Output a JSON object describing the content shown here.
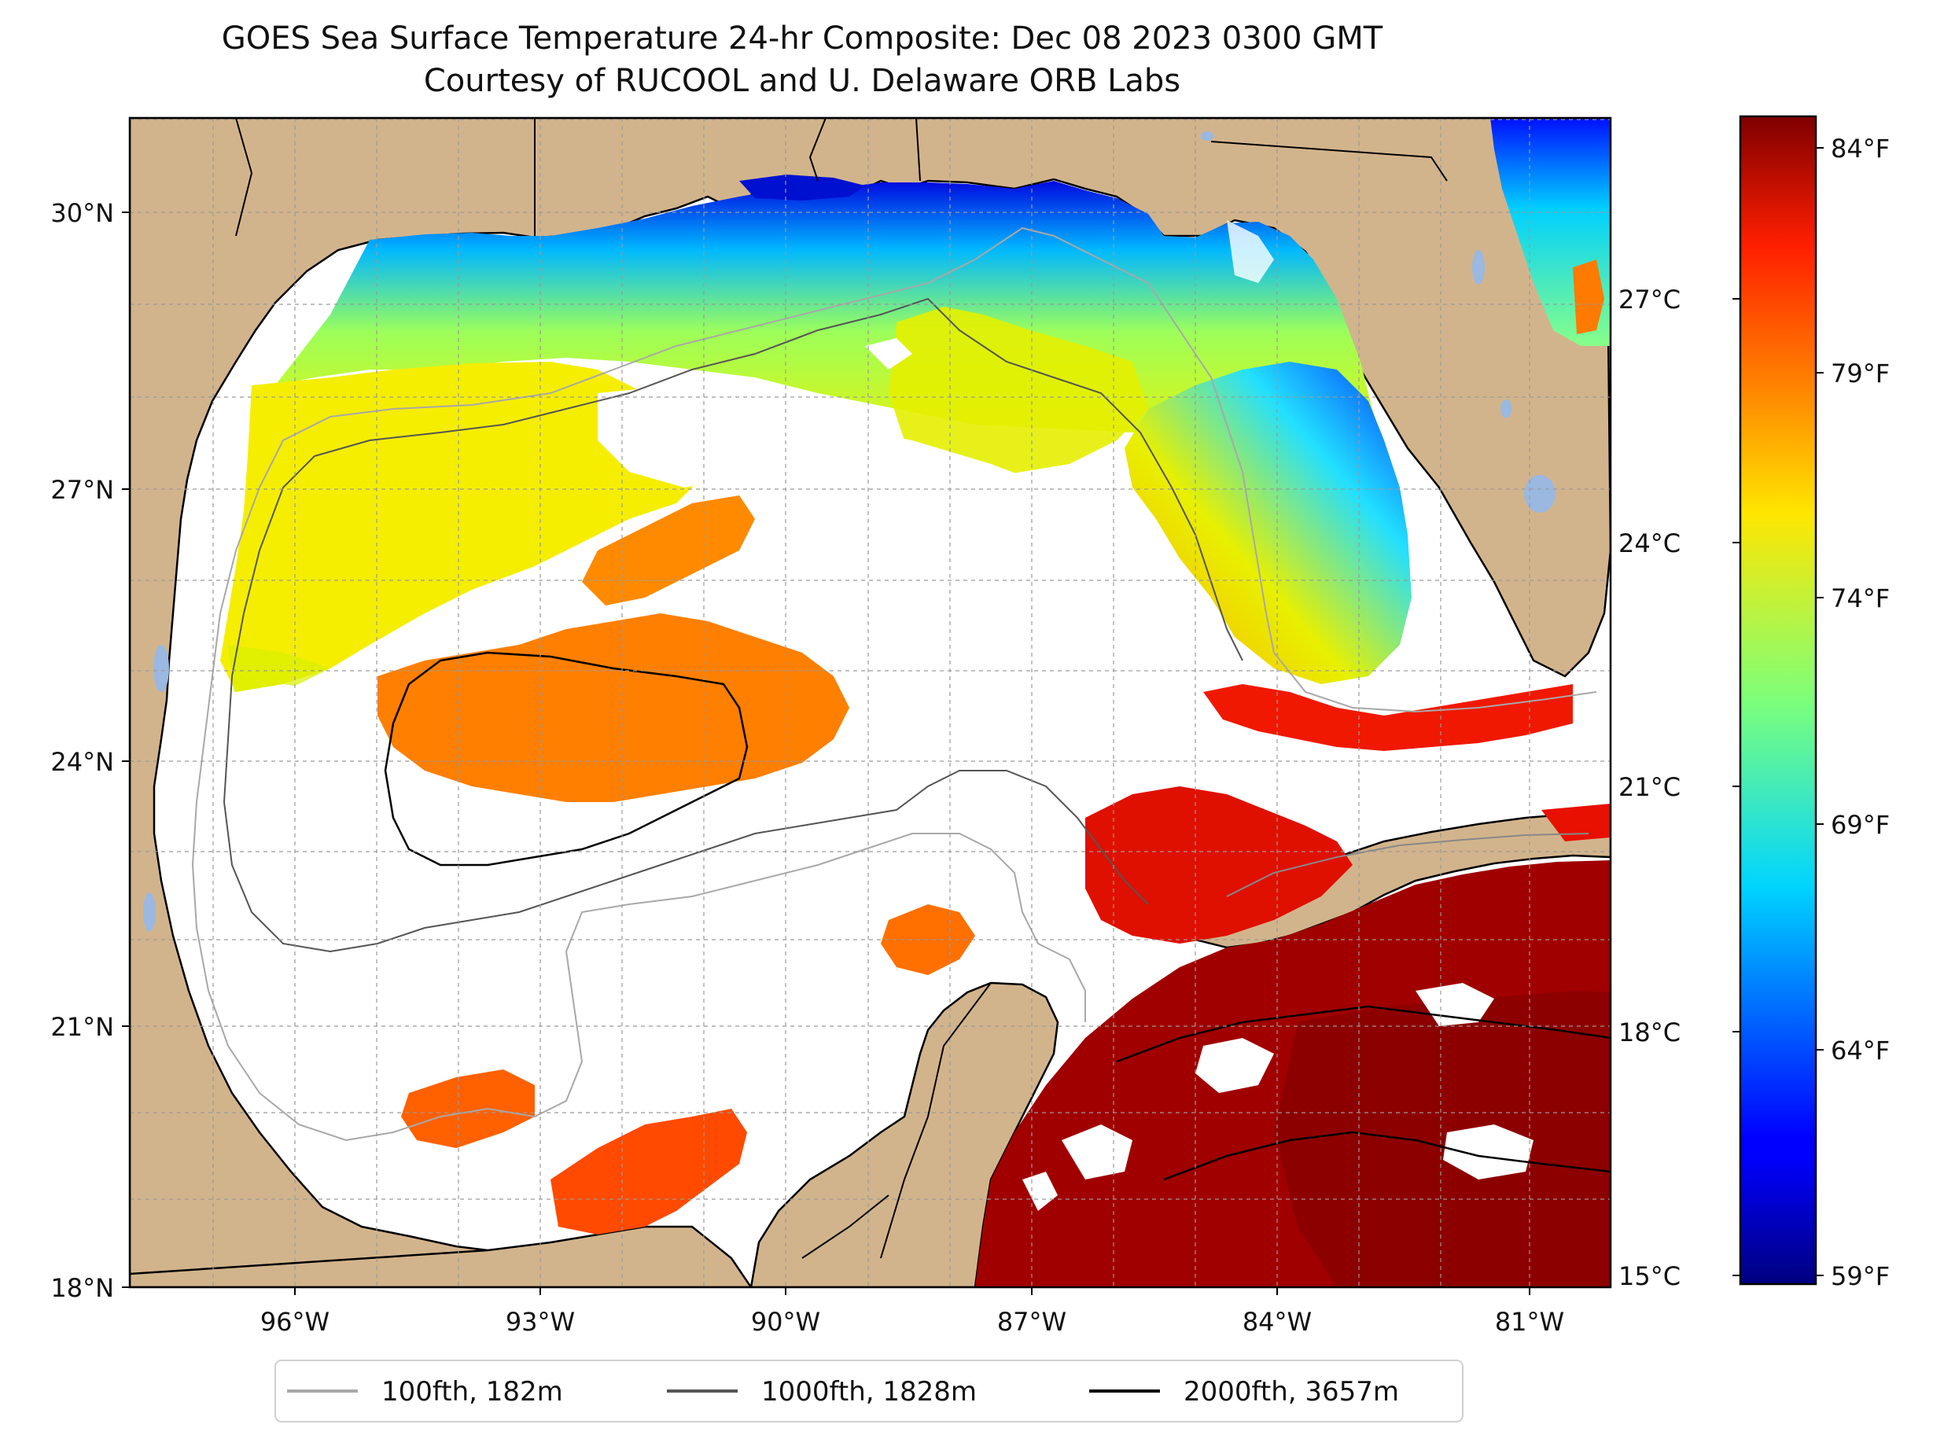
{
  "title": {
    "line1": "GOES Sea Surface Temperature 24-hr Composite: Dec 08 2023 0300 GMT",
    "line2": "Courtesy of RUCOOL and U. Delaware ORB Labs"
  },
  "map": {
    "region": "Gulf of Mexico",
    "lat_labels": [
      "30°N",
      "27°N",
      "24°N",
      "21°N",
      "18°N"
    ],
    "lon_labels": [
      "96°W",
      "93°W",
      "90°W",
      "87°W",
      "84°W",
      "81°W"
    ],
    "land_color": "#d2b48c",
    "lake_color": "#9ab8e0",
    "gridlines": true
  },
  "colorbar": {
    "colormap": "jet",
    "range_f": [
      59,
      85
    ],
    "celsius_ticks": [
      "27°C",
      "24°C",
      "21°C",
      "18°C",
      "15°C"
    ],
    "fahrenheit_ticks": [
      "84°F",
      "79°F",
      "74°F",
      "69°F",
      "64°F",
      "59°F"
    ]
  },
  "legend": {
    "placement": "bottom-center",
    "items": [
      {
        "label": "100fth, 182m",
        "color": "#a8a8a8"
      },
      {
        "label": "1000fth, 1828m",
        "color": "#555555"
      },
      {
        "label": "2000fth, 3657m",
        "color": "#000000"
      }
    ]
  }
}
